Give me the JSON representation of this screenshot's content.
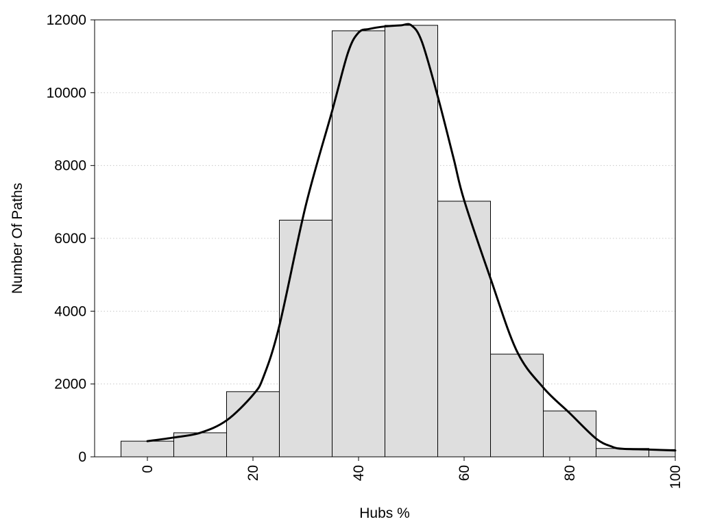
{
  "chart_data": {
    "type": "bar",
    "title": "",
    "xlabel": "Hubs %",
    "ylabel": "Number Of Paths",
    "xlim": [
      -10,
      100
    ],
    "ylim": [
      0,
      12000
    ],
    "xticks": [
      0,
      20,
      40,
      60,
      80,
      100
    ],
    "yticks": [
      0,
      2000,
      4000,
      6000,
      8000,
      10000,
      12000
    ],
    "grid": "horizontal dotted",
    "bins": [
      {
        "x": 0,
        "value": 430
      },
      {
        "x": 10,
        "value": 660
      },
      {
        "x": 20,
        "value": 1790
      },
      {
        "x": 30,
        "value": 6500
      },
      {
        "x": 40,
        "value": 11700
      },
      {
        "x": 50,
        "value": 11850
      },
      {
        "x": 60,
        "value": 7020
      },
      {
        "x": 70,
        "value": 2820
      },
      {
        "x": 80,
        "value": 1260
      },
      {
        "x": 90,
        "value": 230
      },
      {
        "x": 100,
        "value": 200
      }
    ],
    "bin_width": 10,
    "density_curve": {
      "x": [
        0,
        5,
        10,
        15,
        20,
        22,
        25,
        30,
        35,
        38,
        40,
        42,
        45,
        48,
        50,
        52,
        55,
        58,
        60,
        65,
        70,
        75,
        80,
        85,
        88,
        90,
        95,
        100
      ],
      "y": [
        430,
        530,
        660,
        1000,
        1700,
        2200,
        3600,
        6900,
        9500,
        11100,
        11650,
        11750,
        11820,
        11850,
        11850,
        11400,
        9900,
        8200,
        7050,
        4900,
        2900,
        1900,
        1200,
        500,
        280,
        220,
        200,
        175
      ]
    },
    "colors": {
      "bar_fill": "#dedede",
      "bar_stroke": "#000000",
      "curve": "#000000"
    }
  }
}
